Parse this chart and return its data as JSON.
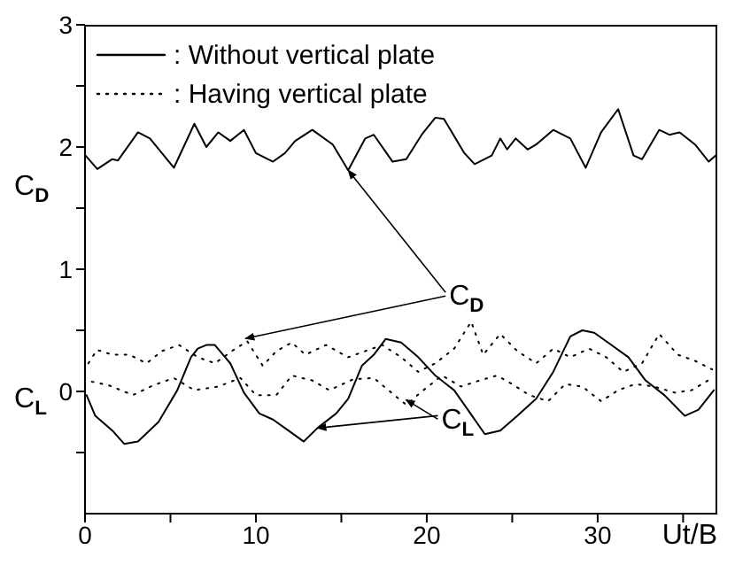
{
  "chart_data": {
    "type": "line",
    "ylabel": "C$_{D}$",
    "xlabel": "Ut/B",
    "legend": "top left",
    "xlim": [
      0,
      37
    ],
    "ylim": [
      -1,
      3
    ],
    "xticks": [
      0,
      {
        "value": 5,
        "label": null
      },
      10,
      {
        "value": 15,
        "label": null
      },
      20,
      {
        "value": 25,
        "label": null
      },
      30,
      {
        "value": 35,
        "label": null
      }
    ],
    "yticks": [
      {
        "value": -0.5,
        "label": null
      },
      0,
      {
        "value": 0.5,
        "label": null
      },
      1,
      {
        "value": 1.5,
        "label": null
      },
      2,
      {
        "value": 2.5,
        "label": null
      },
      3
    ],
    "annotations": [
      "C$_{L}$",
      {
        "text": "C$_{D}$",
        "x": 15.4,
        "y": 1.81
      },
      {
        "text": "C$_{L}$",
        "x": 13.6,
        "y": -0.3
      }
    ],
    "series": [
      {
        "name": ": Without vertical plate",
        "color": "#000000",
        "line_style": "solid",
        "x": [
          0.03,
          0.72,
          1.58,
          1.93,
          3.1,
          3.8,
          5.2,
          6.4,
          7.1,
          7.8,
          8.5,
          9.3,
          10.0,
          11.0,
          11.7,
          12.3,
          13.3,
          14.5,
          15.4,
          16.4,
          16.9,
          18.0,
          18.8,
          19.7,
          20.5,
          21.0,
          22.2,
          22.8,
          23.8,
          24.3,
          24.7,
          25.2,
          25.9,
          26.4,
          27.4,
          28.4,
          29.3,
          30.2,
          31.2,
          32.1,
          32.6,
          33.6,
          34.2,
          34.8,
          35.7,
          36.5,
          36.9
        ],
        "values": [
          1.93,
          1.82,
          1.9,
          1.89,
          2.12,
          2.07,
          1.83,
          2.19,
          2.0,
          2.12,
          2.05,
          2.14,
          1.95,
          1.88,
          1.95,
          2.05,
          2.14,
          2.02,
          1.81,
          2.07,
          2.1,
          1.88,
          1.9,
          2.1,
          2.24,
          2.23,
          1.95,
          1.86,
          1.93,
          2.07,
          1.98,
          2.07,
          1.98,
          2.02,
          2.14,
          2.07,
          1.83,
          2.12,
          2.31,
          1.93,
          1.9,
          2.14,
          2.1,
          2.12,
          2.02,
          1.88,
          1.93
        ]
      },
      {
        "name": ": Having vertical plate",
        "color": "#000000",
        "line_style": "dotted",
        "x": [
          0.2,
          0.7,
          1.6,
          2.6,
          3.6,
          4.5,
          5.5,
          6.6,
          7.6,
          8.8,
          9.5,
          10.4,
          11.2,
          12.1,
          12.9,
          14.1,
          15.4,
          16.4,
          17.4,
          18.5,
          19.5,
          20.5,
          21.6,
          22.6,
          23.3,
          24.3,
          25.3,
          26.4,
          27.4,
          28.4,
          29.5,
          30.5,
          31.5,
          32.6,
          33.6,
          34.7,
          35.7,
          36.7
        ],
        "values": [
          0.23,
          0.34,
          0.3,
          0.3,
          0.23,
          0.33,
          0.38,
          0.28,
          0.23,
          0.35,
          0.41,
          0.21,
          0.33,
          0.4,
          0.3,
          0.38,
          0.28,
          0.33,
          0.38,
          0.28,
          0.16,
          0.23,
          0.35,
          0.57,
          0.3,
          0.47,
          0.33,
          0.23,
          0.35,
          0.28,
          0.35,
          0.28,
          0.16,
          0.23,
          0.47,
          0.3,
          0.25,
          0.18
        ]
      },
      {
        "color": "#000000",
        "line_style": "solid",
        "x": [
          0.09,
          0.6,
          1.6,
          2.3,
          3.1,
          4.3,
          5.4,
          6.2,
          6.6,
          7.1,
          7.6,
          8.5,
          9.3,
          10.2,
          11.0,
          11.9,
          12.8,
          13.6,
          14.7,
          15.4,
          16.2,
          16.9,
          17.6,
          18.5,
          19.5,
          20.5,
          21.6,
          22.3,
          23.4,
          24.3,
          25.3,
          26.4,
          27.4,
          28.4,
          29.1,
          29.8,
          30.8,
          31.8,
          32.8,
          33.9,
          35.1,
          35.9,
          36.8
        ],
        "values": [
          -0.03,
          -0.2,
          -0.32,
          -0.43,
          -0.41,
          -0.25,
          0.01,
          0.28,
          0.35,
          0.38,
          0.38,
          0.23,
          -0.01,
          -0.18,
          -0.23,
          -0.32,
          -0.41,
          -0.3,
          -0.18,
          -0.06,
          0.21,
          0.3,
          0.43,
          0.4,
          0.28,
          0.13,
          0.01,
          -0.13,
          -0.35,
          -0.32,
          -0.2,
          -0.06,
          0.16,
          0.45,
          0.5,
          0.48,
          0.38,
          0.28,
          0.09,
          -0.03,
          -0.2,
          -0.15,
          0.01
        ]
      },
      {
        "color": "#000000",
        "line_style": "dotted",
        "x": [
          0.4,
          1.4,
          2.8,
          4.0,
          5.2,
          6.4,
          7.8,
          9.1,
          10.0,
          11.2,
          12.1,
          13.3,
          14.3,
          15.7,
          16.9,
          18.1,
          18.8,
          19.8,
          20.9,
          22.0,
          23.1,
          24.1,
          25.0,
          26.0,
          27.1,
          28.1,
          29.1,
          30.2,
          31.2,
          32.2,
          33.3,
          34.5,
          35.5,
          36.7
        ],
        "values": [
          0.08,
          0.05,
          -0.03,
          0.05,
          0.11,
          0.01,
          0.04,
          0.11,
          -0.03,
          -0.03,
          0.13,
          0.09,
          0.01,
          0.1,
          0.11,
          -0.03,
          -0.11,
          0.01,
          0.13,
          0.04,
          0.09,
          0.13,
          0.06,
          -0.03,
          -0.08,
          0.06,
          0.04,
          -0.08,
          0.01,
          0.06,
          0.04,
          -0.01,
          0.01,
          0.11
        ]
      }
    ]
  }
}
